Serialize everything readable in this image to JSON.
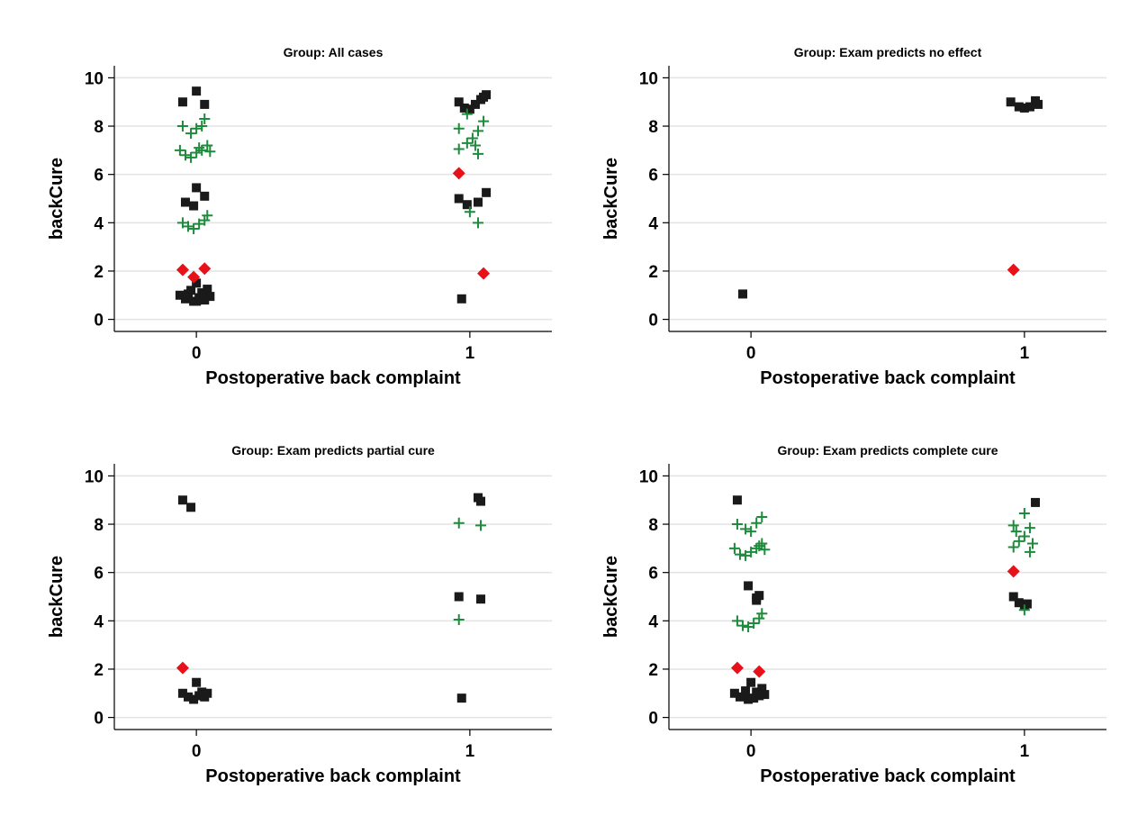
{
  "chart_data": [
    {
      "type": "scatter",
      "title": "Group: All cases",
      "xlabel": "Postoperative back complaint",
      "ylabel": "backCure",
      "xcategories": [
        "0",
        "1"
      ],
      "xlim": [
        -0.3,
        1.3
      ],
      "ylim": [
        -0.5,
        10.5
      ],
      "yticks": [
        0,
        2,
        4,
        6,
        8,
        10
      ],
      "grid": true,
      "series": [
        {
          "marker": "square",
          "color": "#1a1a1a",
          "points": [
            [
              -0.05,
              9.0
            ],
            [
              0.0,
              9.45
            ],
            [
              0.03,
              8.9
            ],
            [
              -0.04,
              4.85
            ],
            [
              0.0,
              5.45
            ],
            [
              0.03,
              5.1
            ],
            [
              -0.01,
              4.7
            ],
            [
              -0.06,
              1.0
            ],
            [
              -0.04,
              0.85
            ],
            [
              -0.02,
              1.2
            ],
            [
              -0.01,
              0.75
            ],
            [
              0.0,
              1.5
            ],
            [
              0.01,
              0.9
            ],
            [
              0.02,
              1.1
            ],
            [
              0.03,
              0.8
            ],
            [
              0.04,
              1.25
            ],
            [
              0.05,
              0.95
            ],
            [
              -0.03,
              1.05
            ],
            [
              0.0,
              0.75
            ],
            [
              0.96,
              9.0
            ],
            [
              0.98,
              8.75
            ],
            [
              1.0,
              8.7
            ],
            [
              1.02,
              8.9
            ],
            [
              1.04,
              9.1
            ],
            [
              1.06,
              9.3
            ],
            [
              1.05,
              9.2
            ],
            [
              0.96,
              5.0
            ],
            [
              0.99,
              4.75
            ],
            [
              1.03,
              4.85
            ],
            [
              1.06,
              5.25
            ],
            [
              0.97,
              0.85
            ]
          ]
        },
        {
          "marker": "plus",
          "color": "#1e8a3c",
          "points": [
            [
              -0.05,
              8.0
            ],
            [
              -0.02,
              7.7
            ],
            [
              0.0,
              7.9
            ],
            [
              0.02,
              8.0
            ],
            [
              0.03,
              8.3
            ],
            [
              -0.06,
              7.0
            ],
            [
              -0.04,
              6.8
            ],
            [
              -0.02,
              6.7
            ],
            [
              0.0,
              6.9
            ],
            [
              0.02,
              7.0
            ],
            [
              0.04,
              7.2
            ],
            [
              0.05,
              6.95
            ],
            [
              0.01,
              7.1
            ],
            [
              -0.05,
              4.0
            ],
            [
              -0.03,
              3.85
            ],
            [
              -0.01,
              3.75
            ],
            [
              0.01,
              3.95
            ],
            [
              0.03,
              4.1
            ],
            [
              0.04,
              4.3
            ],
            [
              0.96,
              7.9
            ],
            [
              0.99,
              8.5
            ],
            [
              1.03,
              7.8
            ],
            [
              1.05,
              8.2
            ],
            [
              0.96,
              7.05
            ],
            [
              0.99,
              7.3
            ],
            [
              1.01,
              7.5
            ],
            [
              1.03,
              6.85
            ],
            [
              1.02,
              7.2
            ],
            [
              1.0,
              4.45
            ],
            [
              1.03,
              4.0
            ]
          ]
        },
        {
          "marker": "diamond",
          "color": "#e8111a",
          "points": [
            [
              -0.05,
              2.05
            ],
            [
              -0.01,
              1.75
            ],
            [
              0.03,
              2.1
            ],
            [
              0.96,
              6.05
            ],
            [
              1.05,
              1.9
            ]
          ]
        }
      ]
    },
    {
      "type": "scatter",
      "title": "Group: Exam predicts no effect",
      "xlabel": "Postoperative back complaint",
      "ylabel": "backCure",
      "xcategories": [
        "0",
        "1"
      ],
      "xlim": [
        -0.3,
        1.3
      ],
      "ylim": [
        -0.5,
        10.5
      ],
      "yticks": [
        0,
        2,
        4,
        6,
        8,
        10
      ],
      "grid": true,
      "series": [
        {
          "marker": "square",
          "color": "#1a1a1a",
          "points": [
            [
              -0.03,
              1.05
            ],
            [
              0.95,
              9.0
            ],
            [
              0.98,
              8.8
            ],
            [
              1.0,
              8.75
            ],
            [
              1.02,
              8.8
            ],
            [
              1.04,
              9.05
            ],
            [
              1.05,
              8.9
            ]
          ]
        },
        {
          "marker": "diamond",
          "color": "#e8111a",
          "points": [
            [
              0.96,
              2.05
            ]
          ]
        }
      ]
    },
    {
      "type": "scatter",
      "title": "Group: Exam predicts partial cure",
      "xlabel": "Postoperative back complaint",
      "ylabel": "backCure",
      "xcategories": [
        "0",
        "1"
      ],
      "xlim": [
        -0.3,
        1.3
      ],
      "ylim": [
        -0.5,
        10.5
      ],
      "yticks": [
        0,
        2,
        4,
        6,
        8,
        10
      ],
      "grid": true,
      "series": [
        {
          "marker": "square",
          "color": "#1a1a1a",
          "points": [
            [
              -0.05,
              9.0
            ],
            [
              -0.02,
              8.7
            ],
            [
              -0.05,
              1.0
            ],
            [
              -0.03,
              0.85
            ],
            [
              -0.01,
              0.75
            ],
            [
              0.0,
              1.45
            ],
            [
              0.01,
              0.9
            ],
            [
              0.02,
              1.05
            ],
            [
              0.03,
              0.85
            ],
            [
              0.04,
              1.0
            ],
            [
              1.03,
              9.1
            ],
            [
              1.04,
              8.95
            ],
            [
              0.96,
              5.0
            ],
            [
              1.04,
              4.9
            ],
            [
              0.97,
              0.8
            ]
          ]
        },
        {
          "marker": "plus",
          "color": "#1e8a3c",
          "points": [
            [
              0.96,
              8.05
            ],
            [
              1.04,
              7.95
            ],
            [
              0.96,
              4.05
            ]
          ]
        },
        {
          "marker": "diamond",
          "color": "#e8111a",
          "points": [
            [
              -0.05,
              2.05
            ]
          ]
        }
      ]
    },
    {
      "type": "scatter",
      "title": "Group: Exam predicts complete cure",
      "xlabel": "Postoperative back complaint",
      "ylabel": "backCure",
      "xcategories": [
        "0",
        "1"
      ],
      "xlim": [
        -0.3,
        1.3
      ],
      "ylim": [
        -0.5,
        10.5
      ],
      "yticks": [
        0,
        2,
        4,
        6,
        8,
        10
      ],
      "grid": true,
      "series": [
        {
          "marker": "square",
          "color": "#1a1a1a",
          "points": [
            [
              -0.05,
              9.0
            ],
            [
              -0.01,
              5.45
            ],
            [
              0.02,
              4.85
            ],
            [
              0.03,
              5.05
            ],
            [
              0.02,
              4.95
            ],
            [
              -0.06,
              1.0
            ],
            [
              -0.04,
              0.85
            ],
            [
              -0.02,
              1.1
            ],
            [
              -0.01,
              0.75
            ],
            [
              0.0,
              1.45
            ],
            [
              0.01,
              0.8
            ],
            [
              0.02,
              1.05
            ],
            [
              0.03,
              0.9
            ],
            [
              0.04,
              1.2
            ],
            [
              0.05,
              0.95
            ],
            [
              1.04,
              8.9
            ],
            [
              0.96,
              5.0
            ],
            [
              0.98,
              4.75
            ],
            [
              1.0,
              4.65
            ],
            [
              1.01,
              4.7
            ]
          ]
        },
        {
          "marker": "plus",
          "color": "#1e8a3c",
          "points": [
            [
              -0.05,
              8.0
            ],
            [
              -0.02,
              7.8
            ],
            [
              0.0,
              7.7
            ],
            [
              0.02,
              8.05
            ],
            [
              0.04,
              8.3
            ],
            [
              -0.06,
              7.0
            ],
            [
              -0.04,
              6.75
            ],
            [
              -0.02,
              6.7
            ],
            [
              0.0,
              6.85
            ],
            [
              0.02,
              7.0
            ],
            [
              0.04,
              7.2
            ],
            [
              0.05,
              6.95
            ],
            [
              0.03,
              7.1
            ],
            [
              -0.05,
              4.0
            ],
            [
              -0.03,
              3.8
            ],
            [
              -0.01,
              3.75
            ],
            [
              0.01,
              3.9
            ],
            [
              0.03,
              4.1
            ],
            [
              0.04,
              4.3
            ],
            [
              0.96,
              7.95
            ],
            [
              0.97,
              7.7
            ],
            [
              1.0,
              8.45
            ],
            [
              1.02,
              7.85
            ],
            [
              0.96,
              7.05
            ],
            [
              0.98,
              7.3
            ],
            [
              1.0,
              7.5
            ],
            [
              1.02,
              6.85
            ],
            [
              1.03,
              7.2
            ],
            [
              1.0,
              4.45
            ]
          ]
        },
        {
          "marker": "diamond",
          "color": "#e8111a",
          "points": [
            [
              -0.05,
              2.05
            ],
            [
              0.03,
              1.9
            ],
            [
              0.96,
              6.05
            ]
          ]
        }
      ]
    }
  ]
}
